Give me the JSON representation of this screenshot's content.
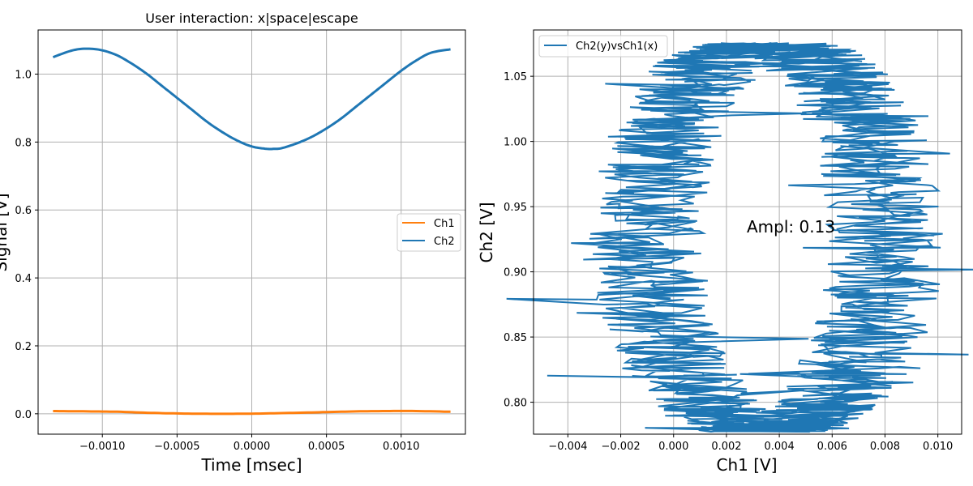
{
  "chart_data": [
    {
      "type": "line",
      "title": "User interaction: x|space|escape",
      "xlabel": "Time [msec]",
      "ylabel": "Signal [V]",
      "xlim": [
        -0.00143,
        0.00143
      ],
      "ylim": [
        -0.06,
        1.13
      ],
      "xticks": [
        -0.001,
        -0.0005,
        0.0,
        0.0005,
        0.001
      ],
      "xtick_labels": [
        "−0.0010",
        "−0.0005",
        "0.0000",
        "0.0005",
        "0.0010"
      ],
      "yticks": [
        0.0,
        0.2,
        0.4,
        0.6,
        0.8,
        1.0
      ],
      "ytick_labels": [
        "0.0",
        "0.2",
        "0.4",
        "0.6",
        "0.8",
        "1.0"
      ],
      "grid": true,
      "legend_position": "center-right",
      "series": [
        {
          "name": "Ch1",
          "color": "#ff7f0e",
          "x": [
            -0.00133,
            -0.0011,
            -0.0009,
            -0.0007,
            -0.0005,
            -0.0003,
            -0.0001,
            0.0001,
            0.0003,
            0.0005,
            0.0007,
            0.0009,
            0.0011,
            0.00133
          ],
          "y": [
            0.008,
            0.007,
            0.006,
            0.003,
            0.001,
            0.0,
            0.0,
            0.001,
            0.003,
            0.005,
            0.007,
            0.008,
            0.008,
            0.006
          ]
        },
        {
          "name": "Ch2",
          "color": "#1f77b4",
          "x": [
            -0.00133,
            -0.0012,
            -0.0011,
            -0.001,
            -0.0009,
            -0.0008,
            -0.0007,
            -0.0006,
            -0.0005,
            -0.0004,
            -0.0003,
            -0.0002,
            -0.0001,
            0.0,
            0.0001,
            0.00015,
            0.0002,
            0.0003,
            0.0004,
            0.0005,
            0.0006,
            0.0007,
            0.0008,
            0.0009,
            0.001,
            0.0011,
            0.0012,
            0.00133
          ],
          "y": [
            1.05,
            1.07,
            1.075,
            1.07,
            1.055,
            1.03,
            1.0,
            0.965,
            0.93,
            0.895,
            0.86,
            0.83,
            0.805,
            0.787,
            0.78,
            0.78,
            0.782,
            0.796,
            0.815,
            0.84,
            0.87,
            0.905,
            0.94,
            0.975,
            1.01,
            1.04,
            1.063,
            1.073
          ]
        }
      ]
    },
    {
      "type": "line",
      "title": "",
      "xlabel": "Ch1 [V]",
      "ylabel": "Ch2 [V]",
      "xlim": [
        -0.0053,
        0.0109
      ],
      "ylim": [
        0.7755,
        1.0855
      ],
      "xticks": [
        -0.004,
        -0.002,
        0.0,
        0.002,
        0.004,
        0.006,
        0.008,
        0.01
      ],
      "xtick_labels": [
        "−0.004",
        "−0.002",
        "0.000",
        "0.002",
        "0.004",
        "0.006",
        "0.008",
        "0.010"
      ],
      "yticks": [
        0.8,
        0.85,
        0.9,
        0.95,
        1.0,
        1.05
      ],
      "ytick_labels": [
        "0.80",
        "0.85",
        "0.90",
        "0.95",
        "1.00",
        "1.05"
      ],
      "grid": true,
      "legend_position": "top-left",
      "annotation": "Ampl: 0.13",
      "series": [
        {
          "name": "Ch2(y)vsCh1(x)",
          "color": "#1f77b4",
          "center_x": 0.0035,
          "radius_x": 0.0045,
          "center_y": 0.9265,
          "radius_y": 0.1475,
          "noise_x": 0.0022,
          "noise_y": 0.002
        }
      ]
    }
  ]
}
